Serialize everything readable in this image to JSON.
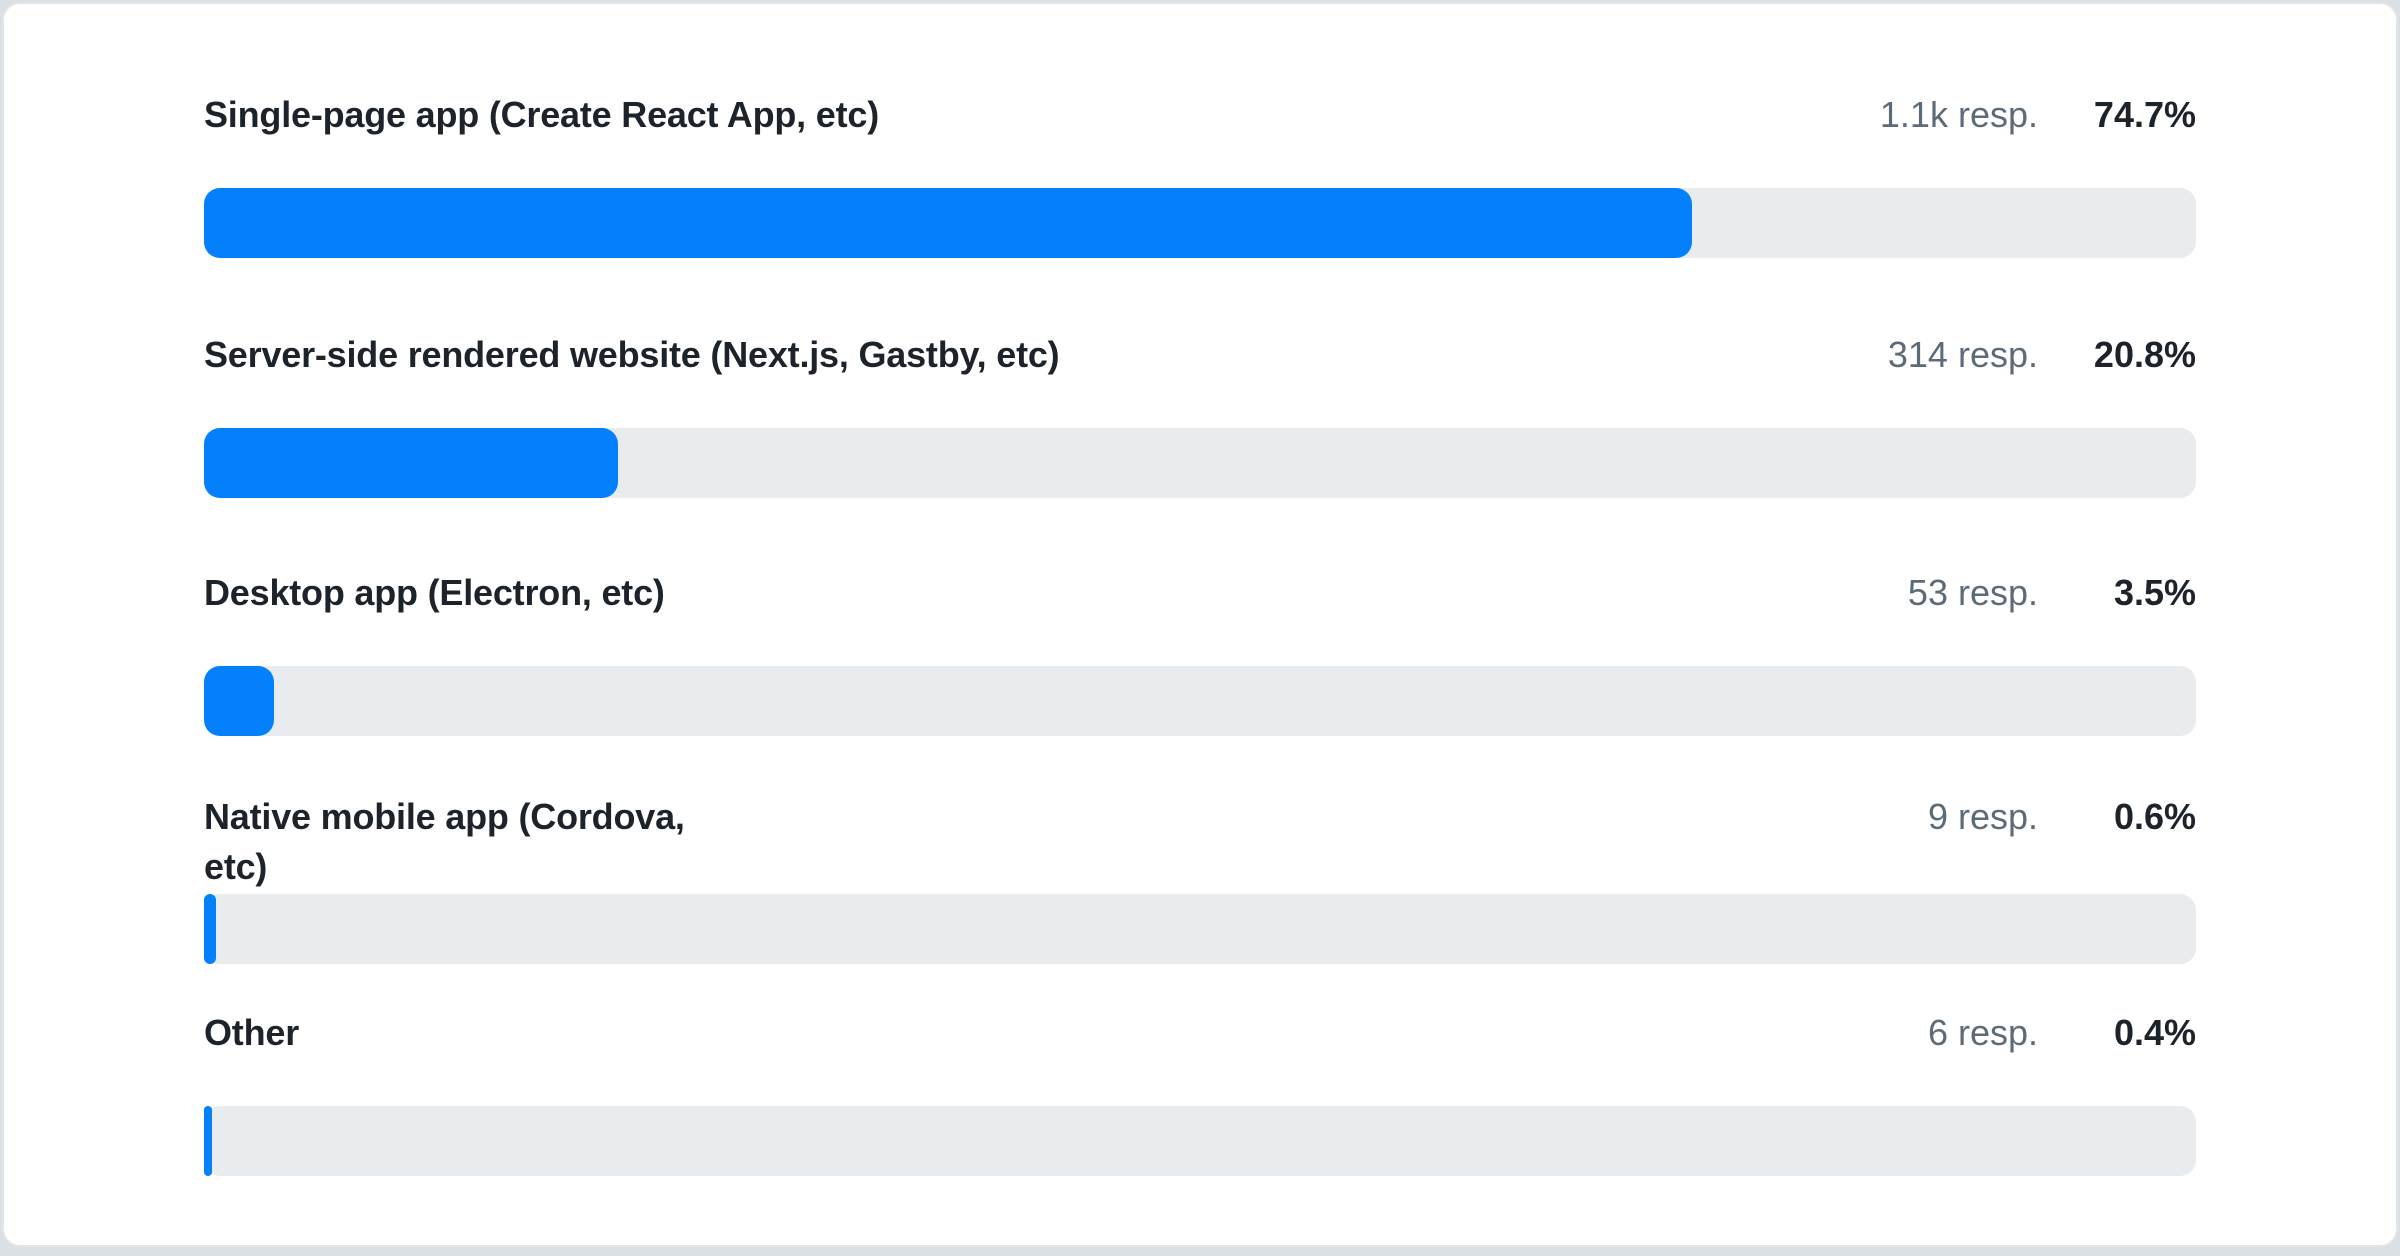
{
  "colors": {
    "accent": "#0580fc",
    "track": "#e9ecef",
    "text": "#1d232a",
    "muted_text": "#5d6b79",
    "card_border": "#e2e6e9",
    "page_background": "#dbe0e5"
  },
  "chart_data": {
    "type": "bar",
    "orientation": "horizontal",
    "title": "",
    "categories": [
      "Single-page app (Create React App, etc)",
      "Server-side rendered website (Next.js, Gastby, etc)",
      "Desktop app (Electron, etc)",
      "Native mobile app (Cordova, etc)",
      "Other"
    ],
    "values": [
      74.7,
      20.8,
      3.5,
      0.6,
      0.4
    ],
    "value_unit": "%",
    "response_counts": [
      "1.1k",
      "314",
      "53",
      "9",
      "6"
    ],
    "xlim": [
      0,
      100
    ],
    "grid": false,
    "legend": false
  },
  "rows": [
    {
      "label": "Single-page app (Create React App, etc)",
      "resp": "1.1k resp.",
      "pct": "74.7%",
      "percent": 74.7
    },
    {
      "label": "Server-side rendered website (Next.js, Gastby, etc)",
      "resp": "314 resp.",
      "pct": "20.8%",
      "percent": 20.8
    },
    {
      "label": "Desktop app (Electron, etc)",
      "resp": "53 resp.",
      "pct": "3.5%",
      "percent": 3.5
    },
    {
      "label": "Native mobile app (Cordova, etc)",
      "resp": "9 resp.",
      "pct": "0.6%",
      "percent": 0.6
    },
    {
      "label": "Other",
      "resp": "6 resp.",
      "pct": "0.4%",
      "percent": 0.4
    }
  ]
}
